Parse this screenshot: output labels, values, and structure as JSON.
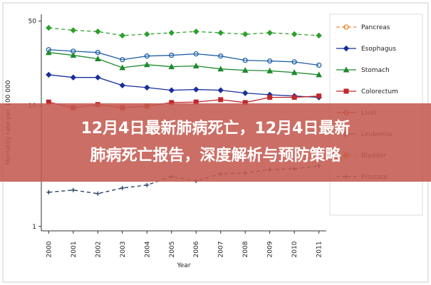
{
  "chart_data": {
    "type": "line",
    "y_label": "Mortality rate per 100 000",
    "x_label": "Year",
    "x": [
      2000,
      2001,
      2002,
      2003,
      2004,
      2005,
      2006,
      2007,
      2008,
      2009,
      2010,
      2011
    ],
    "xlim": [
      1999.7,
      2011.3
    ],
    "xticks": [
      2000,
      2001,
      2002,
      2003,
      2004,
      2005,
      2006,
      2007,
      2008,
      2009,
      2010,
      2011
    ],
    "ylim": [
      0.92,
      57
    ],
    "yticks": [
      1,
      10,
      50
    ],
    "log_y": true,
    "legend": "right",
    "series": [
      {
        "color": "#2ca02c",
        "dash": true,
        "marker": "diamond",
        "values": [
          44,
          42,
          41,
          38,
          39,
          40,
          41,
          40,
          39,
          40,
          39,
          38
        ]
      },
      {
        "color": "#1f5fa8",
        "marker": "circle",
        "values": [
          29.0,
          28.2,
          27.5,
          24.0,
          25.7,
          26.1,
          26.8,
          25.7,
          23.7,
          23.4,
          23.0,
          21.6
        ]
      },
      {
        "name": "Pancreas",
        "color": "#e8892b",
        "dash": true,
        "marker": "circle",
        "values": [
          null,
          null,
          null,
          null,
          null,
          null,
          null,
          null,
          null,
          null,
          null,
          null
        ]
      },
      {
        "name": "Esophagus",
        "color": "#1a2f9c",
        "marker": "diamond",
        "values": [
          18.0,
          17.1,
          17.1,
          14.7,
          14.1,
          13.4,
          13.6,
          13.4,
          12.7,
          12.3,
          12.0,
          11.7
        ]
      },
      {
        "name": "Stomach",
        "color": "#1e8a2e",
        "marker": "triangle",
        "values": [
          27.5,
          26.1,
          24.4,
          20.6,
          21.8,
          21.0,
          21.3,
          20.1,
          19.6,
          19.4,
          18.8,
          18.0
        ]
      },
      {
        "name": "Colorectum",
        "color": "#c0262c",
        "marker": "square",
        "values": [
          10.7,
          9.6,
          10.2,
          9.6,
          9.9,
          10.6,
          10.7,
          11.2,
          10.6,
          11.7,
          11.7,
          12.0
        ]
      },
      {
        "name": "Liver",
        "color": "#c0262c",
        "marker": "circle",
        "values": [
          null,
          null,
          null,
          null,
          null,
          null,
          null,
          null,
          null,
          null,
          null,
          null
        ]
      },
      {
        "name": "Leukemia",
        "color": "#555555",
        "marker": "circle",
        "values": [
          null,
          null,
          null,
          null,
          null,
          null,
          null,
          null,
          null,
          null,
          null,
          null
        ]
      },
      {
        "name": "Bladder",
        "color": "#e8892b",
        "dash": true,
        "marker": "square",
        "values": [
          null,
          null,
          null,
          null,
          null,
          null,
          null,
          null,
          null,
          null,
          null,
          null
        ]
      },
      {
        "name": "Prostate",
        "color": "#1f3a5f",
        "dash": true,
        "marker": "plus",
        "values": [
          1.92,
          2.0,
          1.87,
          2.08,
          2.2,
          2.59,
          2.38,
          2.73,
          2.77,
          2.96,
          3.0,
          3.17
        ]
      }
    ]
  },
  "banner": {
    "lines": [
      "12月4日最新肺病死亡，12月4日最新",
      "肺病死亡报告，深度解析与预防策略"
    ]
  }
}
